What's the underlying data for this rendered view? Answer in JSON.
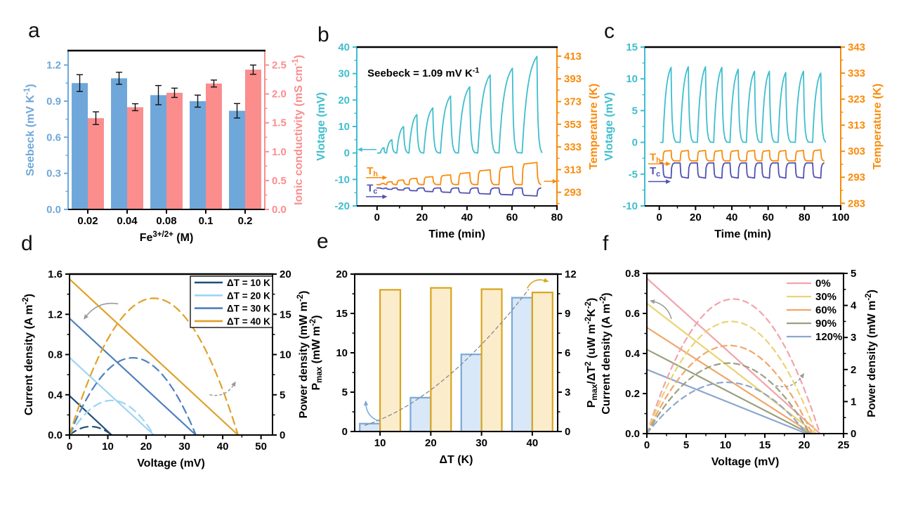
{
  "figure": {
    "background": "#FFFFFF",
    "arrow_color": "#999999"
  },
  "chart_data": [
    {
      "id": "a",
      "label": "a",
      "type": "dualbar",
      "x_axis": {
        "label": "Fe^{3+/2+} (M)",
        "categories": [
          "0.02",
          "0.04",
          "0.08",
          "0.1",
          "0.2"
        ]
      },
      "left_axis": {
        "label": "Seebeck (mV K^{-1})",
        "color": "#6FA7DA",
        "min": 0,
        "max": 1.32,
        "ticks": [
          0,
          0.3,
          0.6,
          0.9,
          1.2
        ],
        "tick_labels": [
          "0.0",
          "0.3",
          "0.6",
          "0.9",
          "1.2"
        ]
      },
      "right_axis": {
        "label": "Ionic conductivity (mS cm^{-1})",
        "color": "#FB8D8D",
        "min": 0,
        "max": 2.75,
        "ticks": [
          0,
          0.5,
          1,
          1.5,
          2,
          2.5
        ],
        "tick_labels": [
          "0.0",
          "0.5",
          "1.0",
          "1.5",
          "2.0",
          "2.5"
        ]
      },
      "series": [
        {
          "name": "Seebeck",
          "axis": "left",
          "color": "#6FA7DA",
          "values": [
            1.05,
            1.09,
            0.95,
            0.9,
            0.82
          ],
          "errors": [
            0.07,
            0.05,
            0.08,
            0.05,
            0.06
          ]
        },
        {
          "name": "Ionic conductivity",
          "axis": "right",
          "color": "#FB8D8D",
          "values": [
            1.58,
            1.77,
            2.02,
            2.18,
            2.42
          ],
          "errors": [
            0.11,
            0.06,
            0.08,
            0.06,
            0.08
          ]
        }
      ]
    },
    {
      "id": "b",
      "label": "b",
      "type": "pulse",
      "x_axis": {
        "label": "Time (min)",
        "min": -9,
        "max": 80,
        "ticks": [
          0,
          20,
          40,
          60,
          80
        ]
      },
      "left_axis": {
        "label": "Vlotage (mV)",
        "color": "#3FBECE",
        "min": -20,
        "max": 40,
        "ticks": [
          -20,
          -10,
          0,
          10,
          20,
          30,
          40
        ]
      },
      "right_axis": {
        "label": "Temperature (K)",
        "color": "#F98B0C",
        "min": 281,
        "max": 421,
        "ticks": [
          293,
          313,
          333,
          353,
          373,
          393,
          413
        ]
      },
      "voltage": {
        "color": "#3FBECE",
        "start": [
          1.5,
          4.2,
          8.8,
          14.2,
          20.8,
          28.2,
          36.2,
          44.8,
          54.2,
          64.5
        ],
        "rise": [
          1.6,
          2.4,
          3.0,
          3.5,
          4.0,
          4.5,
          5.0,
          5.5,
          6.0,
          6.6
        ],
        "amp": [
          2,
          5,
          10,
          14.5,
          17,
          21.5,
          25,
          29.5,
          32,
          36.5
        ],
        "fall": [
          0.8,
          1.8,
          2,
          2,
          2.2,
          2.2,
          2.2,
          2.2,
          2.2,
          2.2
        ]
      },
      "t_hot": {
        "name": "T_{h}",
        "color": "#F98B0C",
        "baseline": 299.8,
        "delta": [
          1,
          2.5,
          4,
          5.5,
          7,
          8.5,
          10.5,
          13,
          16,
          19.5
        ]
      },
      "t_cold": {
        "name": "T_{c}",
        "color": "#5050B4",
        "baseline": 296.8,
        "delta": [
          -0.6,
          -1.2,
          -1.8,
          -2.5,
          -3.2,
          -3.9,
          -4.6,
          -5.3,
          -6.1,
          -7
        ]
      },
      "annotations": [
        {
          "text": "Seebeck = 1.09 mV K^{-1}",
          "fx": 0.053,
          "fy": 0.185,
          "size": 15,
          "color": "#000000"
        },
        {
          "text": "T_{h}",
          "fx": 0.05,
          "fy": 0.8,
          "size": 15,
          "color": "#F98B0C"
        },
        {
          "text": "T_{c}",
          "fx": 0.05,
          "fy": 0.91,
          "size": 15,
          "color": "#5050B4"
        }
      ]
    },
    {
      "id": "c",
      "label": "c",
      "type": "pulse",
      "x_axis": {
        "label": "Time (min)",
        "min": -8,
        "max": 100,
        "ticks": [
          0,
          20,
          40,
          60,
          80,
          100
        ]
      },
      "left_axis": {
        "label": "Vlotage (mV)",
        "color": "#3FBECE",
        "min": -10,
        "max": 15,
        "ticks": [
          -10,
          -5,
          0,
          5,
          10,
          15
        ]
      },
      "right_axis": {
        "label": "Temperature (K)",
        "color": "#F98B0C",
        "min": 282,
        "max": 343,
        "ticks": [
          283,
          293,
          303,
          313,
          323,
          333,
          343
        ]
      },
      "voltage": {
        "color": "#3FBECE",
        "start": [
          2,
          11.5,
          21,
          30,
          39,
          48,
          56.5,
          65.5,
          75,
          84.5
        ],
        "rise": [
          4.5,
          4.5,
          4.5,
          4.5,
          4.5,
          4.5,
          4.2,
          4.2,
          4.5,
          4.5
        ],
        "amp": [
          11.8,
          11.9,
          11.9,
          11.8,
          11.5,
          11.2,
          11.2,
          11.0,
          11.2,
          10.9
        ],
        "fall": [
          2.6,
          2.6,
          2.6,
          2.6,
          2.6,
          2.6,
          2.6,
          2.6,
          2.6,
          2.6
        ]
      },
      "t_hot": {
        "name": "T_{h}",
        "color": "#F98B0C",
        "baseline": 299.3,
        "delta": [
          4,
          4,
          4,
          4,
          4,
          4,
          4,
          4,
          4,
          4.2
        ]
      },
      "t_cold": {
        "name": "T_{c}",
        "color": "#5050B4",
        "baseline": 298.5,
        "delta": [
          -5.8,
          -5.8,
          -5.8,
          -5.8,
          -5.8,
          -5.8,
          -5.8,
          -5.8,
          -5.8,
          -5.8
        ]
      },
      "annotations": [
        {
          "text": "T_{h}",
          "fx": 0.025,
          "fy": 0.715,
          "size": 15,
          "color": "#F98B0C"
        },
        {
          "text": "T_{c}",
          "fx": 0.025,
          "fy": 0.8,
          "size": 15,
          "color": "#5050B4"
        }
      ]
    },
    {
      "id": "d",
      "label": "d",
      "type": "ivpower",
      "x_axis": {
        "label": "Voltage (mV)",
        "min": 0,
        "max": 53,
        "ticks": [
          0,
          10,
          20,
          30,
          40,
          50
        ]
      },
      "left_axis": {
        "label": "Current density (A m^{-2})",
        "min": 0,
        "max": 1.6,
        "ticks": [
          0,
          0.4,
          0.8,
          1.2,
          1.6
        ],
        "tick_labels": [
          "0.0",
          "0.4",
          "0.8",
          "1.2",
          "1.6"
        ]
      },
      "right_axis": {
        "label": "Power density (mW m^{-2})",
        "min": 0,
        "max": 20,
        "ticks": [
          0,
          5,
          10,
          15,
          20
        ]
      },
      "legend": {
        "border": true,
        "entries": [
          "ΔT = 10 K",
          "ΔT = 20 K",
          "ΔT = 30 K",
          "ΔT = 40 K"
        ]
      },
      "series": [
        {
          "name": "ΔT = 10 K",
          "color": "#1F4E79",
          "isc": 0.39,
          "voc": 11,
          "pmax": 1.05
        },
        {
          "name": "ΔT = 20 K",
          "color": "#9DD4F2",
          "isc": 0.77,
          "voc": 22,
          "pmax": 4.3
        },
        {
          "name": "ΔT = 30 K",
          "color": "#4E81BD",
          "isc": 1.16,
          "voc": 33,
          "pmax": 9.6
        },
        {
          "name": "ΔT = 40 K",
          "color": "#DFA12A",
          "isc": 1.55,
          "voc": 44,
          "pmax": 17.0
        }
      ]
    },
    {
      "id": "e",
      "label": "e",
      "type": "groupbar",
      "x_axis": {
        "label": "ΔT (K)",
        "min": 5,
        "max": 45,
        "ticks": [
          10,
          20,
          30,
          40
        ]
      },
      "left_axis": {
        "label": "P_{max} (mW m^{-2})",
        "min": 0,
        "max": 20,
        "ticks": [
          0,
          5,
          10,
          15,
          20
        ]
      },
      "right_axis": {
        "label": "P_{max}/ΔT^{2} (uW m^{-2}K^{-2})",
        "min": 0,
        "max": 12,
        "ticks": [
          0,
          3,
          6,
          9,
          12
        ]
      },
      "series": [
        {
          "name": "Pmax",
          "axis": "left",
          "fill": "#D8E8F8",
          "stroke": "#7BA7DB",
          "values": [
            1.0,
            4.3,
            9.8,
            17.0
          ]
        },
        {
          "name": "Pmax/ΔT2",
          "axis": "right",
          "fill": "#FBEDCC",
          "stroke": "#D9A41E",
          "values": [
            10.8,
            10.95,
            10.85,
            10.6
          ]
        }
      ],
      "trend": {
        "color": "#8A8A8A"
      }
    },
    {
      "id": "f",
      "label": "f",
      "type": "ivpower",
      "x_axis": {
        "label": "Voltage (mV)",
        "min": 0,
        "max": 25,
        "ticks": [
          0,
          5,
          10,
          15,
          20,
          25
        ]
      },
      "left_axis": {
        "label": "Current density (A m^{-2})",
        "min": 0,
        "max": 0.8,
        "ticks": [
          0,
          0.2,
          0.4,
          0.6,
          0.8
        ],
        "tick_labels": [
          "0.0",
          "0.2",
          "0.4",
          "0.6",
          "0.8"
        ]
      },
      "right_axis": {
        "label": "Power density (mW m^{-2})",
        "min": 0,
        "max": 5,
        "ticks": [
          0,
          1,
          2,
          3,
          4,
          5
        ]
      },
      "legend": {
        "border": false,
        "entries": [
          "0%",
          "30%",
          "60%",
          "90%",
          "120%"
        ]
      },
      "series": [
        {
          "name": "0%",
          "color": "#F2A3AB",
          "isc": 0.775,
          "voc": 22,
          "pmax": 4.2
        },
        {
          "name": "30%",
          "color": "#EBD374",
          "isc": 0.65,
          "voc": 21.5,
          "pmax": 3.5
        },
        {
          "name": "60%",
          "color": "#F0A76B",
          "isc": 0.53,
          "voc": 21,
          "pmax": 2.75
        },
        {
          "name": "90%",
          "color": "#9AA17E",
          "isc": 0.42,
          "voc": 20.7,
          "pmax": 2.2
        },
        {
          "name": "120%",
          "color": "#8CA7CF",
          "isc": 0.32,
          "voc": 20.3,
          "pmax": 1.6
        }
      ]
    }
  ]
}
